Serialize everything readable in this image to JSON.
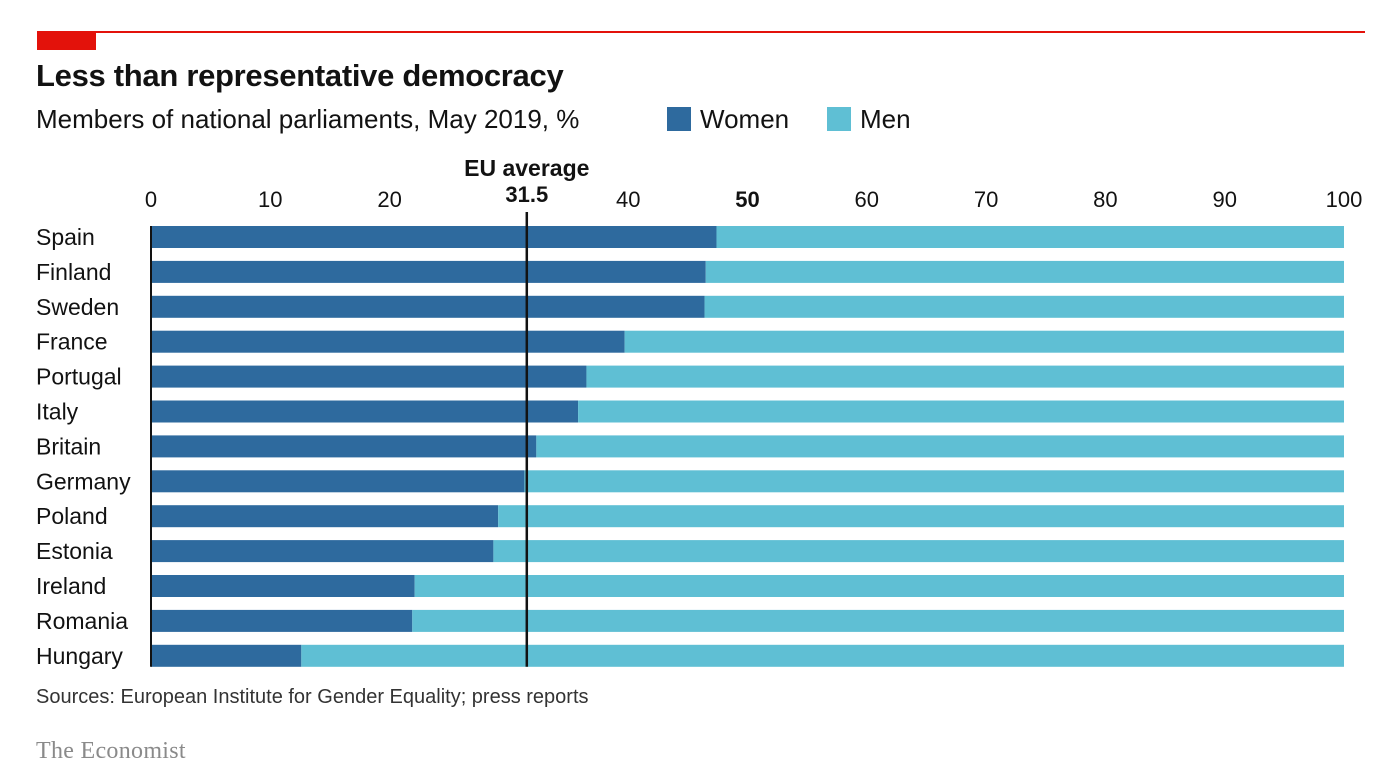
{
  "chart_data": {
    "type": "bar",
    "orientation": "horizontal",
    "stacked": true,
    "title": "Less than representative democracy",
    "subtitle": "Members of national parliaments, May 2019, %",
    "categories": [
      "Spain",
      "Finland",
      "Sweden",
      "France",
      "Portugal",
      "Italy",
      "Britain",
      "Germany",
      "Poland",
      "Estonia",
      "Ireland",
      "Romania",
      "Hungary"
    ],
    "series": [
      {
        "name": "Women",
        "color": "#2e6a9e",
        "values": [
          47.4,
          46.5,
          46.4,
          39.7,
          36.5,
          35.8,
          32.3,
          31.3,
          29.1,
          28.7,
          22.1,
          21.9,
          12.6
        ]
      },
      {
        "name": "Men",
        "color": "#5fbfd4",
        "values": [
          52.6,
          53.5,
          53.6,
          60.3,
          63.5,
          64.2,
          67.7,
          68.7,
          70.9,
          71.3,
          77.9,
          78.1,
          87.4
        ]
      }
    ],
    "xlim": [
      0,
      100
    ],
    "xticks": [
      0,
      10,
      20,
      30,
      40,
      50,
      60,
      70,
      80,
      90,
      100
    ],
    "xtick_labels": [
      "0",
      "10",
      "20",
      "",
      "40",
      "50",
      "60",
      "70",
      "80",
      "90",
      "100"
    ],
    "emphasized_tick": 50,
    "reference_line": {
      "value": 31.5,
      "label": "EU average",
      "value_label": "31.5"
    },
    "legend_position": "top",
    "grid": false
  },
  "source": "Sources: European Institute for Gender Equality; press reports",
  "logo": "The Economist"
}
